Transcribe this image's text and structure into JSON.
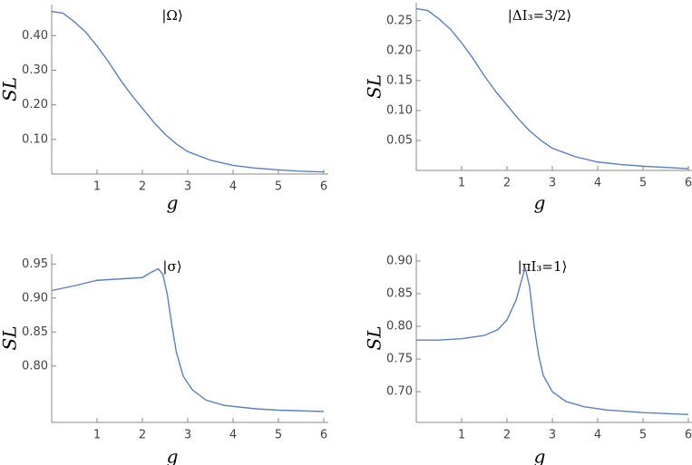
{
  "chart_data": [
    {
      "type": "line",
      "title": "|Ω⟩",
      "x_label": "g",
      "y_label": "SL",
      "x": [
        0,
        0.25,
        0.5,
        0.75,
        1,
        1.25,
        1.5,
        1.75,
        2,
        2.25,
        2.5,
        2.75,
        3,
        3.5,
        4,
        4.5,
        5,
        5.5,
        6
      ],
      "series": [
        {
          "color": "#5e81b5",
          "values": [
            0.47,
            0.465,
            0.44,
            0.41,
            0.37,
            0.325,
            0.275,
            0.23,
            0.19,
            0.15,
            0.115,
            0.087,
            0.065,
            0.04,
            0.025,
            0.017,
            0.012,
            0.008,
            0.006
          ]
        }
      ],
      "xlim": [
        0,
        6.1
      ],
      "ylim": [
        0,
        0.49
      ],
      "xticks": [
        1,
        2,
        3,
        4,
        5,
        6
      ],
      "yticks": [
        {
          "value": 0.1,
          "label": "0.10"
        },
        {
          "value": 0.2,
          "label": "0.20"
        },
        {
          "value": 0.3,
          "label": "0.30"
        },
        {
          "value": 0.4,
          "label": "0.40"
        }
      ],
      "grid": false
    },
    {
      "type": "line",
      "title": "|ΔI₃=3/2⟩",
      "x_label": "g",
      "y_label": "SL",
      "x": [
        0,
        0.25,
        0.5,
        0.75,
        1,
        1.25,
        1.5,
        1.75,
        2,
        2.25,
        2.5,
        2.75,
        3,
        3.5,
        4,
        4.5,
        5,
        5.5,
        6
      ],
      "series": [
        {
          "color": "#5e81b5",
          "values": [
            0.27,
            0.267,
            0.253,
            0.236,
            0.213,
            0.187,
            0.158,
            0.132,
            0.109,
            0.086,
            0.066,
            0.05,
            0.037,
            0.023,
            0.014,
            0.01,
            0.007,
            0.005,
            0.003
          ]
        }
      ],
      "xlim": [
        0,
        6.1
      ],
      "ylim": [
        0,
        0.28
      ],
      "xticks": [
        1,
        2,
        3,
        4,
        5,
        6
      ],
      "yticks": [
        0.05,
        {
          "value": 0.1,
          "label": "0.10"
        },
        0.15,
        {
          "value": 0.2,
          "label": "0.20"
        },
        0.25
      ],
      "grid": false
    },
    {
      "type": "line",
      "title": "|σ⟩",
      "x_label": "g",
      "y_label": "SL",
      "x": [
        0,
        0.5,
        1,
        1.5,
        2,
        2.2,
        2.35,
        2.45,
        2.55,
        2.65,
        2.75,
        2.9,
        3.1,
        3.4,
        3.8,
        4.5,
        5,
        6
      ],
      "series": [
        {
          "color": "#5e81b5",
          "values": [
            0.911,
            0.918,
            0.926,
            0.928,
            0.93,
            0.938,
            0.943,
            0.935,
            0.905,
            0.86,
            0.82,
            0.785,
            0.765,
            0.75,
            0.742,
            0.737,
            0.735,
            0.733
          ]
        }
      ],
      "xlim": [
        0,
        6.1
      ],
      "ylim": [
        0.717,
        0.965
      ],
      "xticks": [
        1,
        2,
        3,
        4,
        5,
        6
      ],
      "yticks": [
        {
          "value": 0.8,
          "label": "0.80"
        },
        0.85,
        {
          "value": 0.9,
          "label": "0.90"
        },
        0.95
      ],
      "grid": false
    },
    {
      "type": "line",
      "title": "|πI₃=1⟩",
      "x_label": "g",
      "y_label": "SL",
      "x": [
        0,
        0.5,
        1,
        1.5,
        1.8,
        2,
        2.2,
        2.3,
        2.4,
        2.5,
        2.6,
        2.7,
        2.8,
        3,
        3.3,
        3.7,
        4.2,
        5,
        6
      ],
      "series": [
        {
          "color": "#5e81b5",
          "values": [
            0.779,
            0.779,
            0.781,
            0.786,
            0.795,
            0.81,
            0.84,
            0.865,
            0.89,
            0.86,
            0.8,
            0.755,
            0.725,
            0.7,
            0.685,
            0.677,
            0.672,
            0.668,
            0.665
          ]
        }
      ],
      "xlim": [
        0,
        6.1
      ],
      "ylim": [
        0.653,
        0.911
      ],
      "xticks": [
        1,
        2,
        3,
        4,
        5,
        6
      ],
      "yticks": [
        {
          "value": 0.7,
          "label": "0.70"
        },
        0.75,
        {
          "value": 0.8,
          "label": "0.80"
        },
        0.85,
        {
          "value": 0.9,
          "label": "0.90"
        }
      ],
      "grid": false
    }
  ]
}
